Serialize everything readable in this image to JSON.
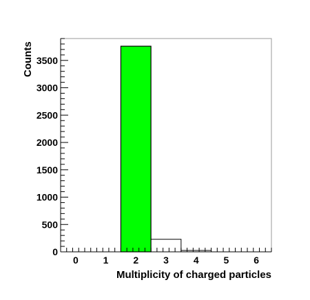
{
  "chart_data": {
    "type": "bar",
    "xlabel": "Multiplicity of charged particles",
    "ylabel": "Counts",
    "xlim": [
      -0.5,
      6.5
    ],
    "ylim": [
      0,
      3900
    ],
    "x_ticks": [
      "0",
      "1",
      "2",
      "3",
      "4",
      "5",
      "6"
    ],
    "y_ticks": [
      "0",
      "500",
      "1000",
      "1500",
      "2000",
      "2500",
      "3000",
      "3500"
    ],
    "bins": [
      {
        "x": 2,
        "value": 3760,
        "highlight": true
      },
      {
        "x": 3,
        "value": 230,
        "highlight": false
      },
      {
        "x": 4,
        "value": 25,
        "highlight": false
      }
    ],
    "highlight_color": "#00ff00",
    "outline_color": "#000000",
    "grid": false
  }
}
